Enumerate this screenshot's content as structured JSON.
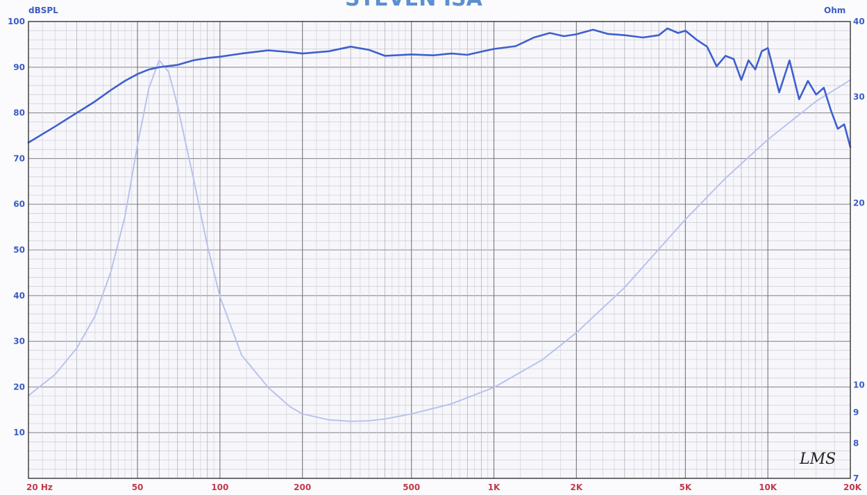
{
  "chart_data": {
    "type": "line",
    "title": "",
    "x_scale": "log",
    "x_ticks": [
      {
        "value": 20,
        "label": "20  Hz"
      },
      {
        "value": 50,
        "label": "50"
      },
      {
        "value": 100,
        "label": "100"
      },
      {
        "value": 200,
        "label": "200"
      },
      {
        "value": 500,
        "label": "500"
      },
      {
        "value": 1000,
        "label": "1K"
      },
      {
        "value": 2000,
        "label": "2K"
      },
      {
        "value": 5000,
        "label": "5K"
      },
      {
        "value": 10000,
        "label": "10K"
      },
      {
        "value": 20000,
        "label": "20K"
      }
    ],
    "xlim": [
      20,
      20000
    ],
    "y_left": {
      "label": "dBSPL",
      "lim": [
        0,
        100
      ],
      "ticks": [
        10,
        20,
        30,
        40,
        50,
        60,
        70,
        80,
        90,
        100
      ]
    },
    "y_right": {
      "label": "Ohm",
      "scale": "log",
      "lim": [
        7,
        40
      ],
      "ticks": [
        7,
        8,
        9,
        10,
        20,
        30,
        40
      ]
    },
    "grid": true,
    "logo": "LMS",
    "title_fragment": "STEVEN ISA",
    "series": [
      {
        "name": "",
        "axis": "left",
        "color": "#3e5fcf",
        "x": [
          20,
          25,
          30,
          35,
          40,
          45,
          50,
          55,
          60,
          70,
          80,
          90,
          100,
          120,
          150,
          180,
          200,
          250,
          300,
          350,
          400,
          500,
          600,
          700,
          800,
          900,
          1000,
          1200,
          1400,
          1600,
          1800,
          2000,
          2300,
          2600,
          3000,
          3500,
          4000,
          4300,
          4700,
          5000,
          5500,
          6000,
          6500,
          7000,
          7500,
          8000,
          8500,
          9000,
          9500,
          10000,
          11000,
          12000,
          13000,
          14000,
          15000,
          16000,
          17000,
          18000,
          19000,
          20000
        ],
        "y": [
          73.5,
          77,
          80,
          82.5,
          85,
          87,
          88.5,
          89.5,
          90,
          90.5,
          91.5,
          92,
          92.3,
          93,
          93.7,
          93.3,
          93,
          93.5,
          94.5,
          93.8,
          92.5,
          92.8,
          92.6,
          93,
          92.7,
          93.4,
          94,
          94.6,
          96.5,
          97.5,
          96.8,
          97.2,
          98.2,
          97.3,
          97,
          96.5,
          97,
          98.5,
          97.5,
          98,
          96,
          94.5,
          90.2,
          92.5,
          91.8,
          87.2,
          91.5,
          89.5,
          93.5,
          94.2,
          84.5,
          91.5,
          83,
          87,
          84,
          85.5,
          80.5,
          76.5,
          77.5,
          72.5
        ]
      },
      {
        "name": "",
        "axis": "right",
        "color": "#b8c2ee",
        "x": [
          20,
          25,
          30,
          35,
          40,
          45,
          50,
          55,
          60,
          65,
          70,
          80,
          90,
          100,
          120,
          150,
          180,
          200,
          250,
          300,
          350,
          400,
          500,
          700,
          1000,
          1500,
          2000,
          3000,
          5000,
          7000,
          10000,
          15000,
          20000
        ],
        "y": [
          9.6,
          10.4,
          11.5,
          13,
          15.4,
          19,
          25,
          31,
          34.5,
          33,
          29,
          22,
          17,
          14,
          11.2,
          9.9,
          9.2,
          8.95,
          8.75,
          8.7,
          8.72,
          8.78,
          8.95,
          9.3,
          9.9,
          11,
          12.2,
          14.5,
          18.8,
          22,
          25.5,
          29.5,
          32
        ]
      }
    ]
  }
}
